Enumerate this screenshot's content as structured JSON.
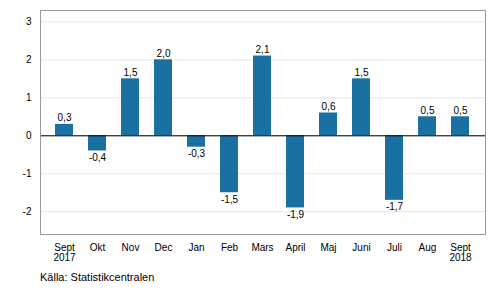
{
  "chart_data": {
    "type": "bar",
    "categories": [
      "Sept\n2017",
      "Okt",
      "Nov",
      "Dec",
      "Jan",
      "Feb",
      "Mars",
      "April",
      "Maj",
      "Juni",
      "Juli",
      "Aug",
      "Sept\n2018"
    ],
    "values": [
      0.3,
      -0.4,
      1.5,
      2.0,
      -0.3,
      -1.5,
      2.1,
      -1.9,
      0.6,
      1.5,
      -1.7,
      0.5,
      0.5
    ],
    "value_labels": [
      "0,3",
      "-0,4",
      "1,5",
      "2,0",
      "-0,3",
      "-1,5",
      "2,1",
      "-1,9",
      "0,6",
      "1,5",
      "-1,7",
      "0,5",
      "0,5"
    ],
    "data_labels": true,
    "color": "#1a6fa3",
    "ylim": [
      -2.6,
      3.3
    ],
    "yticks": [
      -2,
      -1,
      0,
      1,
      2,
      3
    ],
    "grid": true,
    "annotations": [
      "Källa: Statistikcentralen"
    ]
  }
}
